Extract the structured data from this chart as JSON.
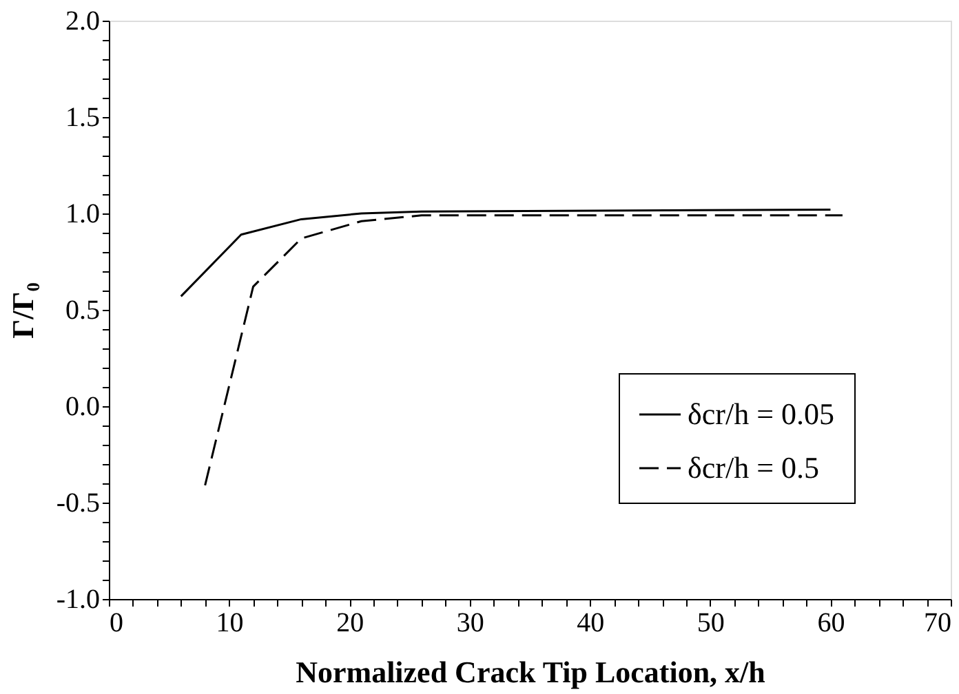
{
  "chart_data": {
    "type": "line",
    "xlabel": "Normalized Crack Tip Location, x/h",
    "ylabel": "Γ/Γ₀",
    "xlim": [
      0,
      70
    ],
    "xticks": [
      0,
      {
        "value": 2,
        "label": null
      },
      {
        "value": 4,
        "label": null
      },
      {
        "value": 6,
        "label": null
      },
      {
        "value": 8,
        "label": null
      },
      10,
      {
        "value": 12,
        "label": null
      },
      {
        "value": 14,
        "label": null
      },
      {
        "value": 16,
        "label": null
      },
      {
        "value": 18,
        "label": null
      },
      20,
      {
        "value": 22,
        "label": null
      },
      {
        "value": 24,
        "label": null
      },
      {
        "value": 26,
        "label": null
      },
      {
        "value": 28,
        "label": null
      },
      30,
      {
        "value": 32,
        "label": null
      },
      {
        "value": 34,
        "label": null
      },
      {
        "value": 36,
        "label": null
      },
      {
        "value": 38,
        "label": null
      },
      40,
      {
        "value": 42,
        "label": null
      },
      {
        "value": 44,
        "label": null
      },
      {
        "value": 46,
        "label": null
      },
      {
        "value": 48,
        "label": null
      },
      50,
      {
        "value": 52,
        "label": null
      },
      {
        "value": 54,
        "label": null
      },
      {
        "value": 56,
        "label": null
      },
      {
        "value": 58,
        "label": null
      },
      60,
      {
        "value": 62,
        "label": null
      },
      {
        "value": 64,
        "label": null
      },
      {
        "value": 66,
        "label": null
      },
      {
        "value": 68,
        "label": null
      },
      70
    ],
    "ylim": [
      -1.0,
      2.0
    ],
    "yticks": [
      {
        "value": -1.0,
        "label": "-1.0"
      },
      {
        "value": -0.9,
        "label": null
      },
      {
        "value": -0.8,
        "label": null
      },
      {
        "value": -0.7,
        "label": null
      },
      {
        "value": -0.6,
        "label": null
      },
      -0.5,
      {
        "value": -0.4,
        "label": null
      },
      {
        "value": -0.3,
        "label": null
      },
      {
        "value": -0.2,
        "label": null
      },
      {
        "value": -0.1,
        "label": null
      },
      {
        "value": 0,
        "label": "0.0"
      },
      {
        "value": 0.1,
        "label": null
      },
      {
        "value": 0.2,
        "label": null
      },
      {
        "value": 0.3,
        "label": null
      },
      {
        "value": 0.4,
        "label": null
      },
      0.5,
      {
        "value": 0.6,
        "label": null
      },
      {
        "value": 0.7,
        "label": null
      },
      {
        "value": 0.8,
        "label": null
      },
      {
        "value": 0.9,
        "label": null
      },
      {
        "value": 1.0,
        "label": "1.0"
      },
      {
        "value": 1.1,
        "label": null
      },
      {
        "value": 1.2,
        "label": null
      },
      {
        "value": 1.3,
        "label": null
      },
      {
        "value": 1.4,
        "label": null
      },
      1.5,
      {
        "value": 1.6,
        "label": null
      },
      {
        "value": 1.7,
        "label": null
      },
      {
        "value": 1.8,
        "label": null
      },
      {
        "value": 1.9,
        "label": null
      },
      {
        "value": 2.0,
        "label": "2.0"
      }
    ],
    "grid": false,
    "legend": "bottom right",
    "marker": "none",
    "series": [
      {
        "name": "δcr/h = 0.05",
        "color": "#000000",
        "line_style": "solid",
        "x": [
          6,
          11,
          16,
          21,
          26,
          60
        ],
        "values": [
          0.57,
          0.89,
          0.97,
          1.0,
          1.01,
          1.02
        ]
      },
      {
        "name": "δcr/h = 0.5",
        "color": "#000000",
        "line_style": "dashed",
        "x": [
          8,
          12,
          16,
          21,
          26,
          61
        ],
        "values": [
          -0.41,
          0.62,
          0.87,
          0.96,
          0.99,
          0.99
        ]
      }
    ]
  }
}
